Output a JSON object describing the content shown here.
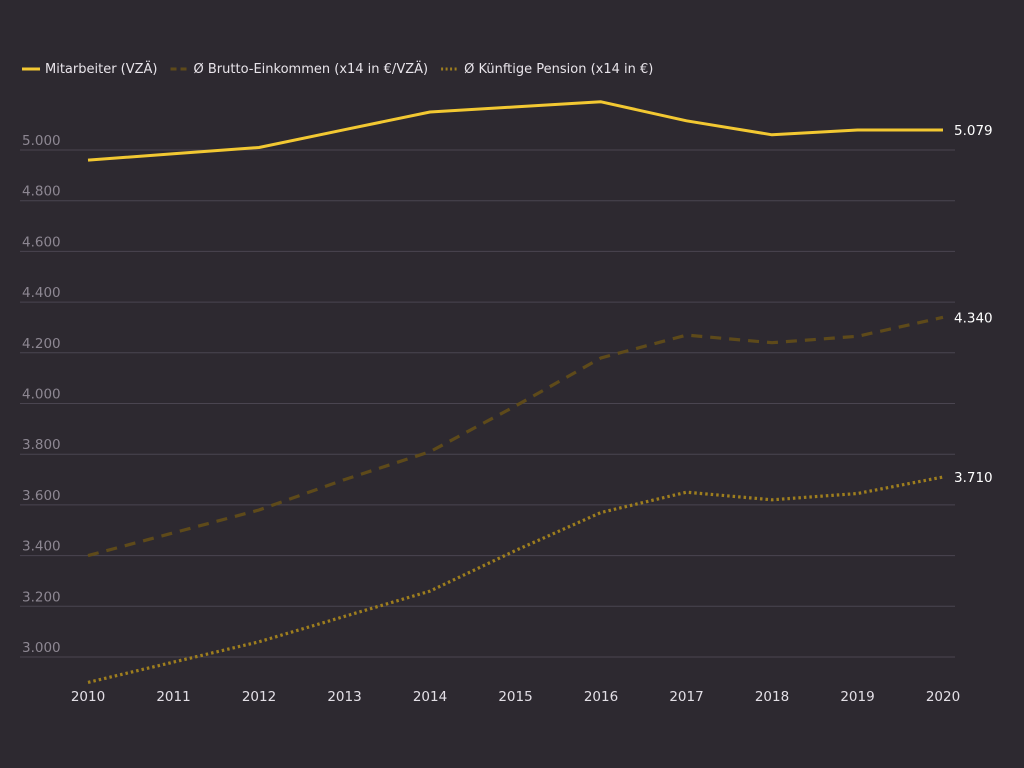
{
  "chart_data": {
    "type": "line",
    "title": "",
    "xlabel": "",
    "ylabel": "",
    "x": [
      "2010",
      "2011",
      "2012",
      "2013",
      "2014",
      "2015",
      "2016",
      "2017",
      "2018",
      "2019",
      "2020"
    ],
    "ylim": [
      2900,
      5220
    ],
    "yticks": [
      3000,
      3200,
      3400,
      3600,
      3800,
      4000,
      4200,
      4400,
      4600,
      4800,
      5000
    ],
    "ytick_labels": [
      "3.000",
      "3.200",
      "3.400",
      "3.600",
      "3.800",
      "4.000",
      "4.200",
      "4.400",
      "4.600",
      "4.800",
      "5.000"
    ],
    "grid": true,
    "legend_position": "top-left",
    "series": [
      {
        "name": "Mitarbeiter (VZÄ)",
        "style": "solid",
        "color": "#f2c832",
        "values": [
          4960,
          4985,
          5010,
          5080,
          5150,
          5170,
          5190,
          5115,
          5060,
          5079,
          5079
        ],
        "end_label": "5.079"
      },
      {
        "name": "Ø Brutto-Einkommen (x14 in €/VZÄ)",
        "style": "dashed",
        "color": "#5e4a1a",
        "values": [
          3400,
          3490,
          3580,
          3700,
          3810,
          3990,
          4180,
          4270,
          4240,
          4265,
          4340
        ],
        "end_label": "4.340"
      },
      {
        "name": "Ø Künftige Pension (x14 in €)",
        "style": "dotted",
        "color": "#9e7e1e",
        "values": [
          2900,
          2980,
          3060,
          3160,
          3260,
          3420,
          3570,
          3650,
          3620,
          3645,
          3710
        ],
        "end_label": "3.710"
      }
    ]
  }
}
